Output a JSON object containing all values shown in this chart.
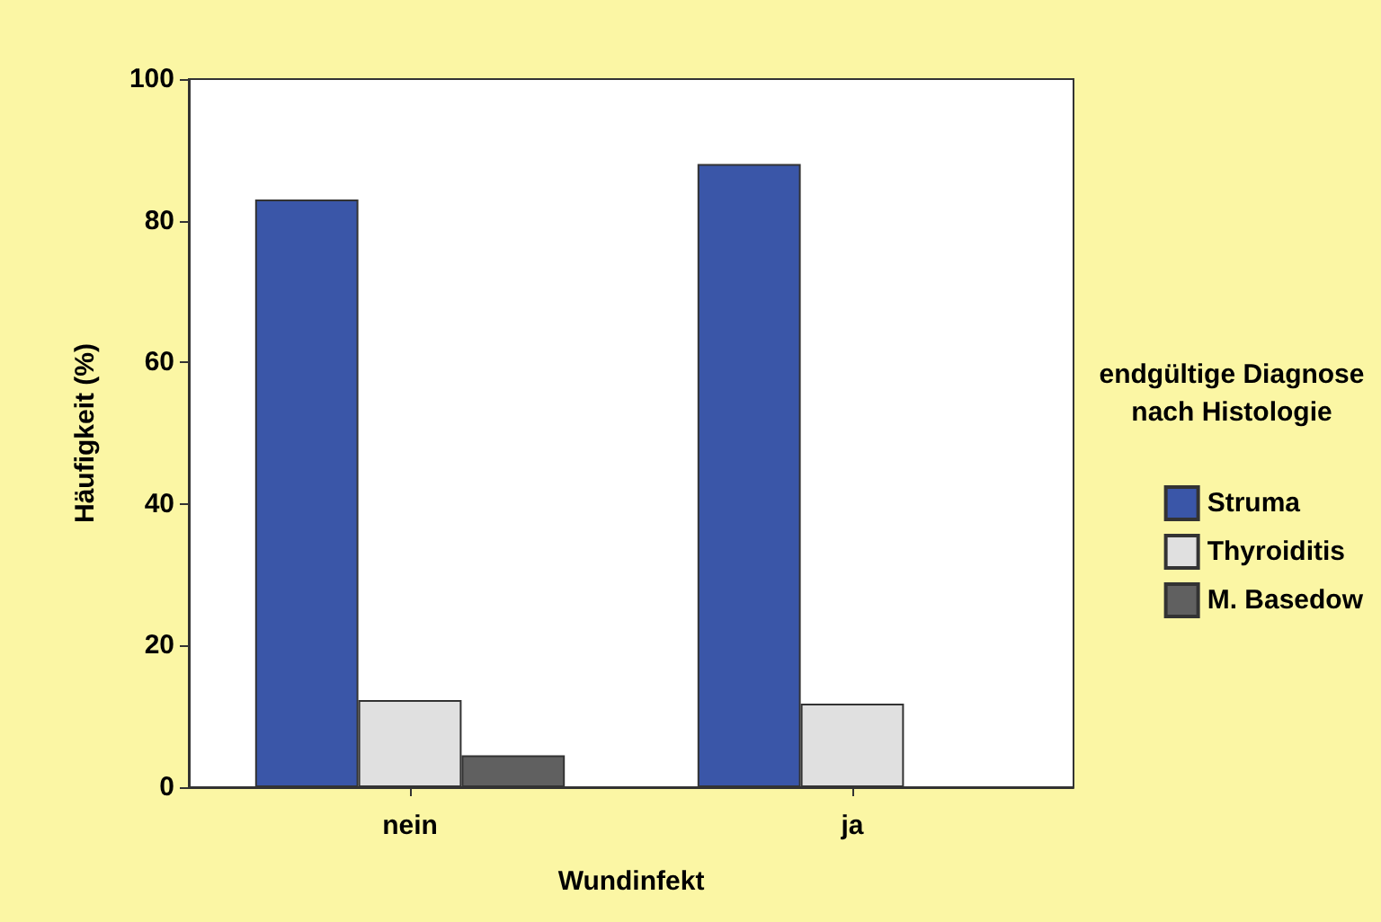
{
  "chart_data": {
    "type": "bar",
    "xlabel": "Wundinfekt",
    "ylabel": "Häufigkeit (%)",
    "legend_title": "endgültige Diagnose nach Histologie",
    "categories": [
      "nein",
      "ja"
    ],
    "series": [
      {
        "name": "Struma",
        "color": "#3a56a8",
        "values": [
          83,
          88
        ]
      },
      {
        "name": "Thyroiditis",
        "color": "#e0e0e0",
        "values": [
          12.3,
          11.8
        ]
      },
      {
        "name": "M. Basedow",
        "color": "#606060",
        "values": [
          4.5,
          null
        ]
      }
    ],
    "ylim": [
      0,
      100
    ],
    "yticks": [
      0,
      20,
      40,
      60,
      80,
      100
    ],
    "grid": false,
    "legend": "right"
  }
}
